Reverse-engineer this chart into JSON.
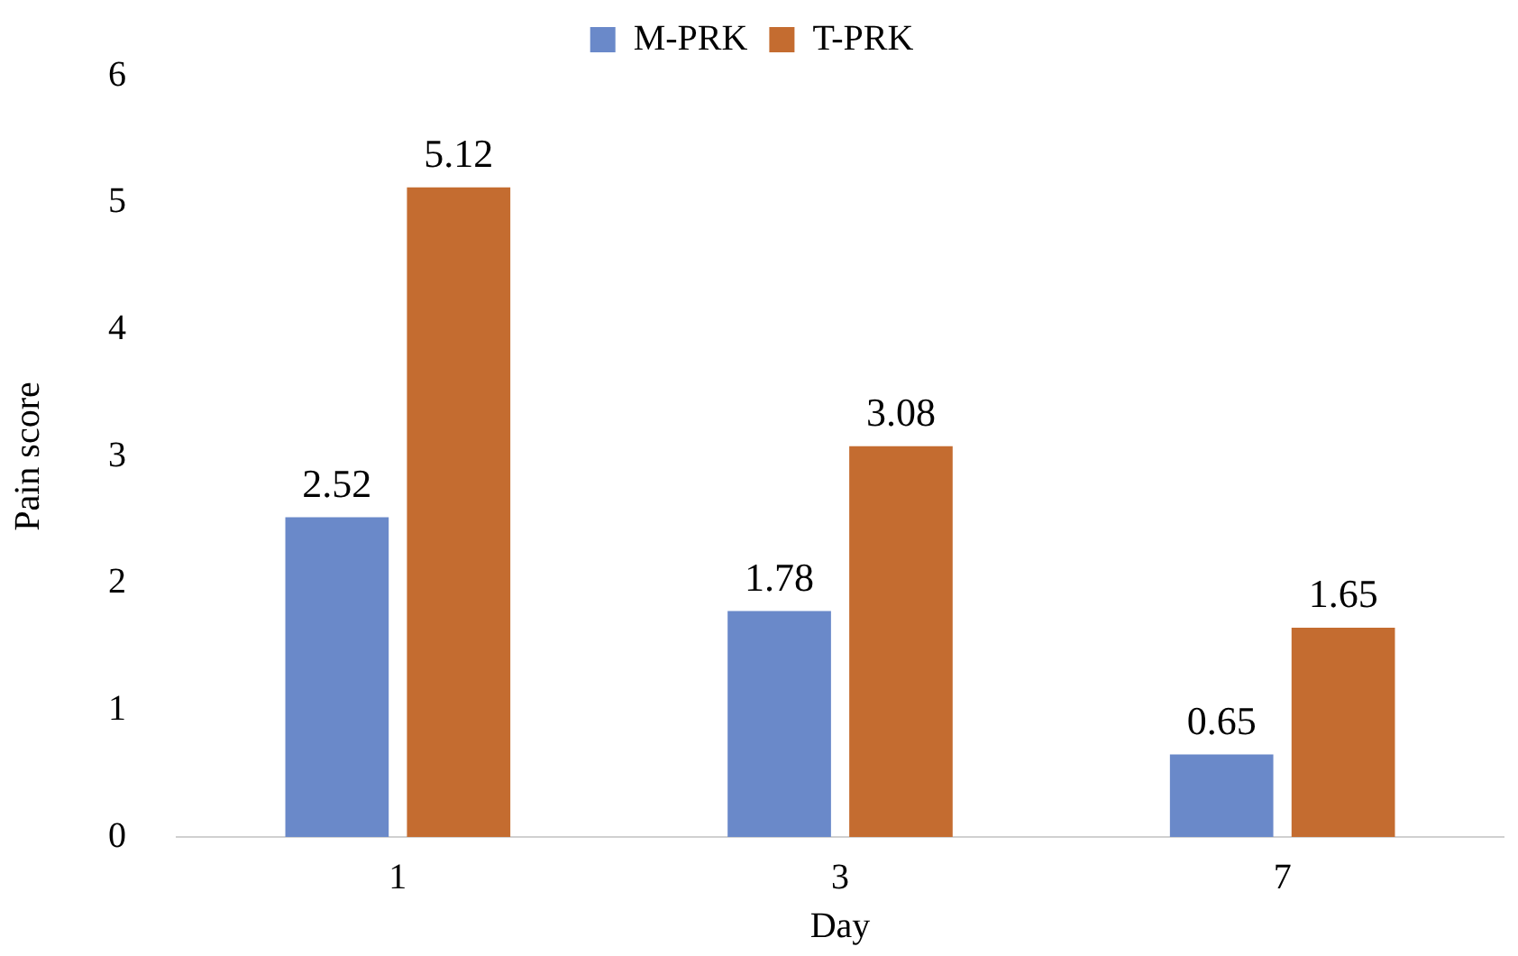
{
  "chart_data": {
    "type": "bar",
    "xlabel": "Day",
    "ylabel": "Pain score",
    "categories": [
      "1",
      "3",
      "7"
    ],
    "series": [
      {
        "name": "M-PRK",
        "color": "#6a89c9",
        "values": [
          2.52,
          1.78,
          0.65
        ]
      },
      {
        "name": "T-PRK",
        "color": "#c46c30",
        "values": [
          5.12,
          3.08,
          1.65
        ]
      }
    ],
    "ylim": [
      0,
      6
    ],
    "yticks": [
      0,
      1,
      2,
      3,
      4,
      5,
      6
    ],
    "grid": false,
    "legend": "top",
    "data_labels": true
  }
}
